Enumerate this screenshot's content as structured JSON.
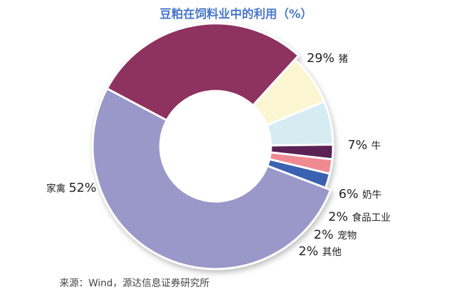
{
  "title": "豆粕在饲料业中的利用（%）",
  "source": "来源：Wind，源达信息证券研究所",
  "chart_data": {
    "type": "pie",
    "title": "豆粕在饲料业中的利用（%）",
    "inner_radius_ratio": 0.45,
    "slices": [
      {
        "label": "猪",
        "value": 29,
        "display": "29%",
        "color": "#8e3060"
      },
      {
        "label": "牛",
        "value": 7,
        "display": "7%",
        "color": "#fbf5d2"
      },
      {
        "label": "奶牛",
        "value": 6,
        "display": "6%",
        "color": "#d6ecf3"
      },
      {
        "label": "食品工业",
        "value": 2,
        "display": "2%",
        "color": "#5c2257"
      },
      {
        "label": "宠物",
        "value": 2,
        "display": "2%",
        "color": "#f08a92"
      },
      {
        "label": "其他",
        "value": 2,
        "display": "2%",
        "color": "#3a62b0"
      },
      {
        "label": "家禽",
        "value": 52,
        "display": "52%",
        "color": "#9a97c9"
      }
    ]
  }
}
